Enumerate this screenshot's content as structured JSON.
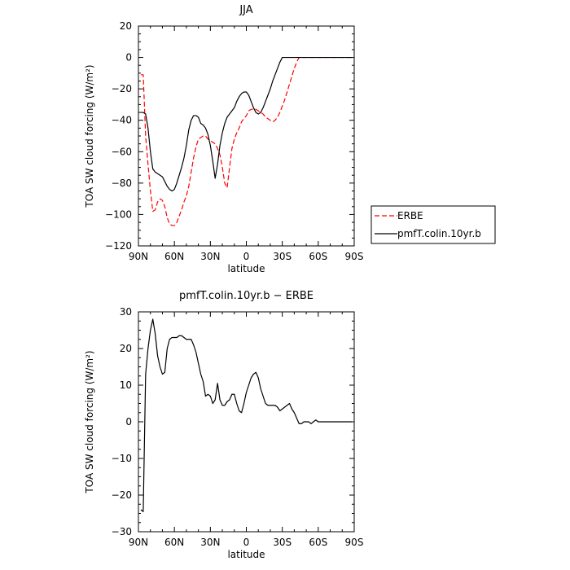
{
  "chart_data": [
    {
      "type": "line",
      "title": "JJA",
      "xlabel": "latitude",
      "ylabel": "TOA SW cloud forcing (W/m²)",
      "xlim": [
        90,
        -90
      ],
      "ylim": [
        -120,
        20
      ],
      "xticks": [
        90,
        60,
        30,
        0,
        -30,
        -60,
        -90
      ],
      "xtick_labels": [
        "90N",
        "60N",
        "30N",
        "0",
        "30S",
        "60S",
        "90S"
      ],
      "yticks": [
        20,
        0,
        -20,
        -40,
        -60,
        -80,
        -100,
        -120
      ],
      "ytick_labels": [
        "20",
        "0",
        "−20",
        "−40",
        "−60",
        "−80",
        "−100",
        "−120"
      ],
      "legend": "outside-right",
      "series": [
        {
          "name": "ERBE",
          "color": "#ff0000",
          "dash": "dashed",
          "x": [
            88,
            86,
            84,
            82,
            80,
            78,
            76,
            74,
            72,
            70,
            68,
            66,
            64,
            62,
            60,
            58,
            56,
            54,
            52,
            50,
            48,
            46,
            44,
            42,
            40,
            38,
            36,
            34,
            32,
            30,
            28,
            26,
            24,
            22,
            20,
            18,
            16,
            14,
            12,
            10,
            8,
            6,
            4,
            2,
            0,
            -2,
            -4,
            -6,
            -8,
            -10,
            -12,
            -14,
            -16,
            -18,
            -20,
            -22,
            -24,
            -26,
            -28,
            -30,
            -32,
            -34,
            -36,
            -38,
            -40,
            -42,
            -44,
            -46,
            -48,
            -50,
            -52,
            -54,
            -56,
            -58,
            -60,
            -62,
            -64,
            -66,
            -68,
            -70,
            -72,
            -74,
            -76,
            -78,
            -80,
            -82,
            -84,
            -86,
            -88
          ],
          "y": [
            -11,
            -11,
            -50,
            -68,
            -85,
            -98,
            -97,
            -92,
            -90,
            -91,
            -95,
            -102,
            -106,
            -107,
            -107,
            -105,
            -101,
            -97,
            -92,
            -88,
            -82,
            -73,
            -64,
            -57,
            -52,
            -51,
            -50,
            -50,
            -52,
            -53,
            -54,
            -55,
            -58,
            -62,
            -70,
            -80,
            -83,
            -70,
            -58,
            -52,
            -48,
            -45,
            -41,
            -39,
            -37,
            -34,
            -33,
            -33,
            -33,
            -34,
            -35,
            -36,
            -38,
            -39,
            -40,
            -41,
            -40,
            -38,
            -35,
            -31,
            -27,
            -22,
            -17,
            -12,
            -7,
            -3,
            0,
            0,
            0,
            0,
            0,
            0,
            0,
            0,
            0,
            0,
            0,
            0,
            0,
            0,
            0,
            0,
            0,
            0,
            0,
            0,
            0,
            0,
            0
          ]
        },
        {
          "name": "pmfT.colin.10yr.b",
          "color": "#000000",
          "dash": "solid",
          "x": [
            88,
            86,
            84,
            82,
            80,
            78,
            76,
            74,
            72,
            70,
            68,
            66,
            64,
            62,
            60,
            58,
            56,
            54,
            52,
            50,
            48,
            46,
            44,
            42,
            40,
            38,
            36,
            34,
            32,
            30,
            28,
            26,
            24,
            22,
            20,
            18,
            16,
            14,
            12,
            10,
            8,
            6,
            4,
            2,
            0,
            -2,
            -4,
            -6,
            -8,
            -10,
            -12,
            -14,
            -16,
            -18,
            -20,
            -22,
            -24,
            -26,
            -28,
            -30,
            -32,
            -34,
            -36,
            -38,
            -40,
            -42,
            -44,
            -46,
            -48,
            -50,
            -52,
            -54,
            -56,
            -58,
            -60,
            -62,
            -64,
            -66,
            -68,
            -70,
            -72,
            -74,
            -76,
            -78,
            -80,
            -82,
            -84,
            -86,
            -88
          ],
          "y": [
            -35,
            -35,
            -36,
            -45,
            -60,
            -71,
            -73,
            -74,
            -75,
            -76,
            -79,
            -82,
            -84,
            -85,
            -84,
            -80,
            -75,
            -70,
            -64,
            -56,
            -46,
            -40,
            -37,
            -37,
            -38,
            -42,
            -43,
            -45,
            -49,
            -56,
            -66,
            -77,
            -68,
            -56,
            -48,
            -42,
            -38,
            -36,
            -34,
            -32,
            -28,
            -25,
            -23,
            -22,
            -22,
            -24,
            -28,
            -32,
            -35,
            -36,
            -35,
            -32,
            -28,
            -24,
            -20,
            -15,
            -11,
            -7,
            -3,
            0,
            0,
            0,
            0,
            0,
            0,
            0,
            0,
            0,
            0,
            0,
            0,
            0,
            0,
            0,
            0,
            0,
            0,
            0,
            0,
            0,
            0,
            0,
            0,
            0,
            0,
            0,
            0,
            0,
            0
          ]
        }
      ]
    },
    {
      "type": "line",
      "title": "pmfT.colin.10yr.b − ERBE",
      "xlabel": "latitude",
      "ylabel": "TOA SW cloud forcing (W/m²)",
      "xlim": [
        90,
        -90
      ],
      "ylim": [
        -30,
        30
      ],
      "xticks": [
        90,
        60,
        30,
        0,
        -30,
        -60,
        -90
      ],
      "xtick_labels": [
        "90N",
        "60N",
        "30N",
        "0",
        "30S",
        "60S",
        "90S"
      ],
      "yticks": [
        30,
        20,
        10,
        0,
        -10,
        -20,
        -30
      ],
      "ytick_labels": [
        "30",
        "20",
        "10",
        "0",
        "−10",
        "−20",
        "−30"
      ],
      "series": [
        {
          "name": "",
          "color": "#000000",
          "dash": "solid",
          "x": [
            88,
            86,
            84,
            82,
            80,
            78,
            76,
            74,
            72,
            70,
            68,
            66,
            64,
            62,
            60,
            58,
            56,
            54,
            52,
            50,
            48,
            46,
            44,
            42,
            40,
            38,
            36,
            34,
            32,
            30,
            28,
            26,
            24,
            22,
            20,
            18,
            16,
            14,
            12,
            10,
            8,
            6,
            4,
            2,
            0,
            -2,
            -4,
            -6,
            -8,
            -10,
            -12,
            -14,
            -16,
            -18,
            -20,
            -22,
            -24,
            -26,
            -28,
            -30,
            -32,
            -34,
            -36,
            -38,
            -40,
            -42,
            -44,
            -46,
            -48,
            -50,
            -52,
            -54,
            -56,
            -58,
            -60,
            -62,
            -64,
            -66,
            -68,
            -70,
            -72,
            -74,
            -76,
            -78,
            -80,
            -82,
            -84,
            -86,
            -88
          ],
          "y": [
            -24,
            -24.5,
            13,
            20,
            25,
            28,
            24,
            18,
            15,
            13,
            13.5,
            20,
            22.5,
            23,
            23,
            23,
            23.5,
            23.5,
            23,
            22.5,
            22.5,
            22.5,
            21,
            19,
            16,
            13,
            11,
            7,
            7.5,
            7,
            5,
            6,
            10.5,
            6,
            4.5,
            4.5,
            5.5,
            6,
            7.5,
            7.5,
            5,
            3,
            2.5,
            5,
            8,
            10,
            12,
            13,
            13.5,
            12,
            9,
            7,
            5,
            4.5,
            4.5,
            4.5,
            4.5,
            4,
            3,
            3.5,
            4,
            4.5,
            5,
            3.5,
            2.5,
            1,
            -0.5,
            -0.5,
            0,
            0,
            0,
            -0.5,
            0,
            0.5,
            0,
            0,
            0,
            0,
            0,
            0,
            0,
            0,
            0,
            0,
            0,
            0,
            0,
            0,
            0
          ]
        }
      ]
    }
  ]
}
